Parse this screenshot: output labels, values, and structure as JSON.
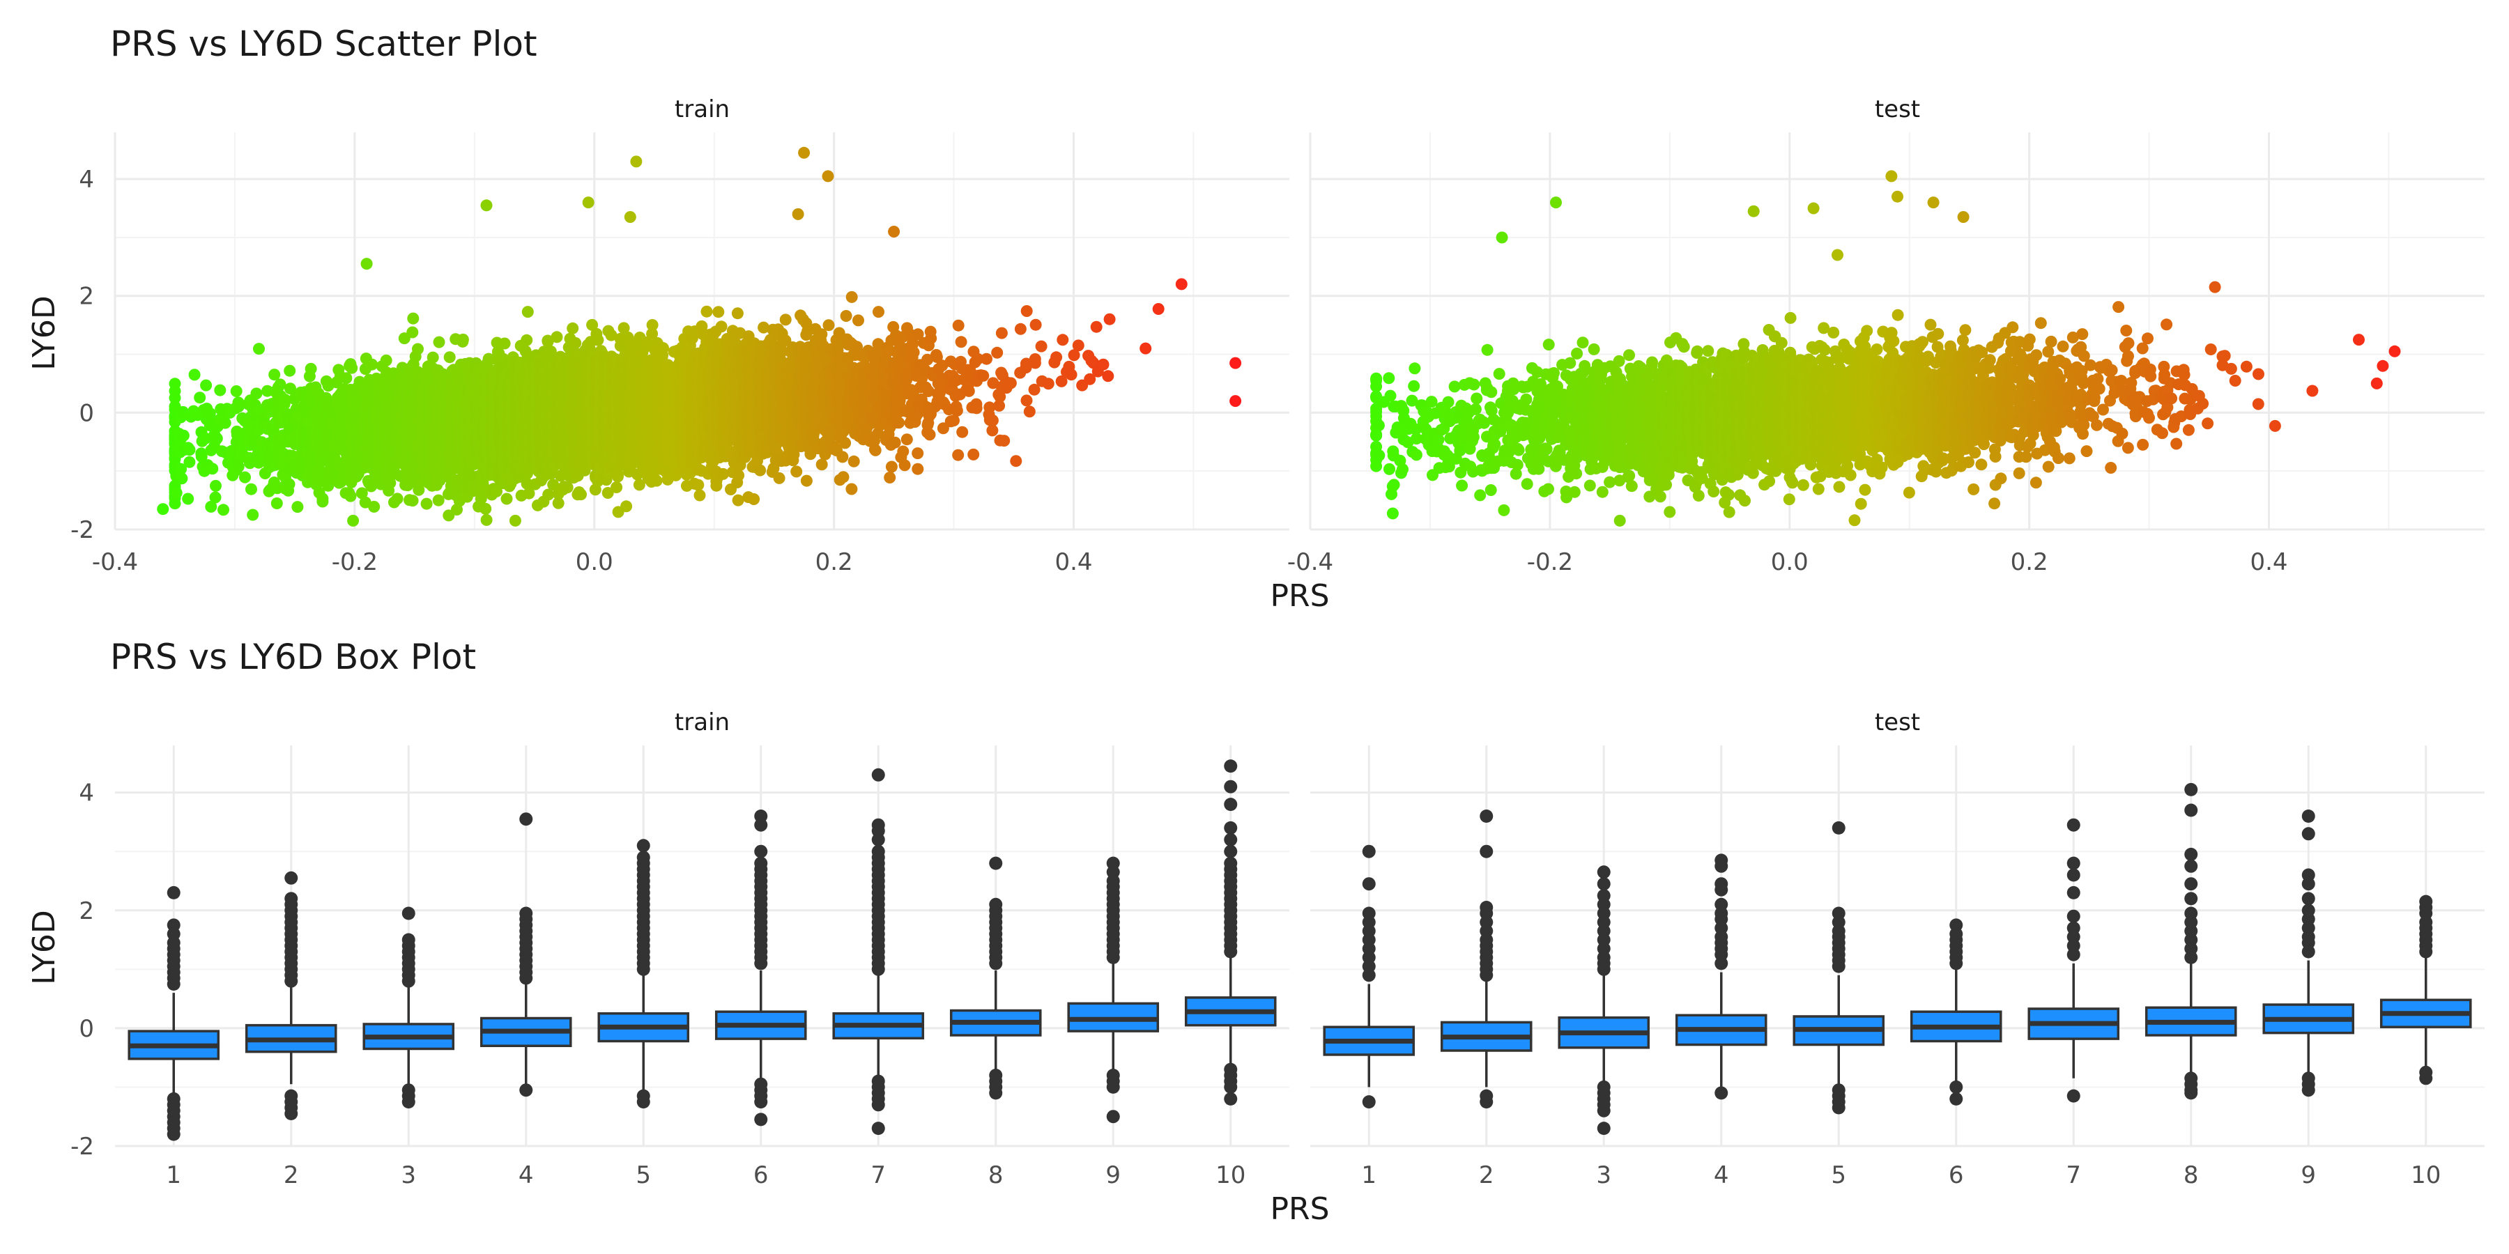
{
  "figure": {
    "scatter_title": "PRS vs LY6D Scatter Plot",
    "box_title": "PRS vs LY6D Box Plot",
    "xlabel": "PRS",
    "ylabel": "LY6D"
  },
  "colors": {
    "low": "#33ff00",
    "mid": "#b8b800",
    "high": "#ff1a1a",
    "box_fill": "#1e8fff",
    "box_stroke": "#333333",
    "grid_major": "#ebebeb",
    "grid_minor": "#f3f3f3",
    "text": "#4d4d4d"
  },
  "chart_data": [
    {
      "type": "scatter",
      "panel_title": "PRS vs LY6D Scatter Plot",
      "facets": [
        "train",
        "test"
      ],
      "xlabel": "PRS",
      "ylabel": "LY6D",
      "x_ticks": [
        "-0.4",
        "-0.2",
        "0.0",
        "0.2",
        "0.4"
      ],
      "y_ticks": [
        "-2",
        "0",
        "2",
        "4"
      ],
      "xlim": [
        -0.4,
        0.58
      ],
      "ylim": [
        -2,
        4.8
      ],
      "color_scale": [
        "#33ff00",
        "#b8b800",
        "#ff1a1a"
      ],
      "grid": true,
      "series": [
        {
          "facet": "train",
          "trend": {
            "slope": 1.55,
            "intercept": 0.0
          },
          "x_range": [
            -0.36,
            0.54
          ],
          "n_points": 9000,
          "outliers": [
            {
              "x": 0.175,
              "y": 4.45
            },
            {
              "x": 0.195,
              "y": 4.05
            },
            {
              "x": 0.035,
              "y": 4.3
            },
            {
              "x": -0.005,
              "y": 3.6
            },
            {
              "x": -0.09,
              "y": 3.55
            },
            {
              "x": 0.17,
              "y": 3.4
            },
            {
              "x": 0.25,
              "y": 3.1
            },
            {
              "x": 0.03,
              "y": 3.35
            },
            {
              "x": 0.49,
              "y": 2.2
            },
            {
              "x": 0.535,
              "y": 0.85
            },
            {
              "x": 0.535,
              "y": 0.2
            },
            {
              "x": -0.36,
              "y": -1.65
            },
            {
              "x": -0.285,
              "y": -1.75
            },
            {
              "x": -0.03,
              "y": -1.55
            },
            {
              "x": -0.13,
              "y": -1.5
            },
            {
              "x": -0.19,
              "y": 2.55
            },
            {
              "x": 0.02,
              "y": -1.7
            },
            {
              "x": 0.12,
              "y": -1.5
            },
            {
              "x": 0.205,
              "y": -1.15
            },
            {
              "x": 0.46,
              "y": 1.1
            },
            {
              "x": 0.43,
              "y": 1.6
            }
          ]
        },
        {
          "facet": "test",
          "trend": {
            "slope": 1.2,
            "intercept": 0.0
          },
          "x_range": [
            -0.355,
            0.505
          ],
          "n_points": 4500,
          "outliers": [
            {
              "x": 0.085,
              "y": 4.05
            },
            {
              "x": 0.09,
              "y": 3.7
            },
            {
              "x": -0.195,
              "y": 3.6
            },
            {
              "x": 0.12,
              "y": 3.6
            },
            {
              "x": 0.145,
              "y": 3.35
            },
            {
              "x": 0.02,
              "y": 3.5
            },
            {
              "x": 0.355,
              "y": 2.15
            },
            {
              "x": -0.24,
              "y": 3.0
            },
            {
              "x": -0.03,
              "y": 3.45
            },
            {
              "x": 0.505,
              "y": 1.05
            },
            {
              "x": 0.495,
              "y": 0.8
            },
            {
              "x": 0.49,
              "y": 0.5
            },
            {
              "x": 0.475,
              "y": 1.25
            },
            {
              "x": -0.1,
              "y": -1.7
            },
            {
              "x": -0.345,
              "y": -0.7
            },
            {
              "x": -0.345,
              "y": 0.45
            },
            {
              "x": 0.04,
              "y": 2.7
            }
          ]
        }
      ]
    },
    {
      "type": "box",
      "panel_title": "PRS vs LY6D Box Plot",
      "facets": [
        "train",
        "test"
      ],
      "xlabel": "PRS",
      "ylabel": "LY6D",
      "categories": [
        "1",
        "2",
        "3",
        "4",
        "5",
        "6",
        "7",
        "8",
        "9",
        "10"
      ],
      "y_ticks": [
        "-2",
        "0",
        "2",
        "4"
      ],
      "ylim": [
        -2,
        4.8
      ],
      "grid": true,
      "series": [
        {
          "facet": "train",
          "boxes": [
            {
              "q1": -0.52,
              "median": -0.3,
              "q3": -0.05,
              "wmin": -1.15,
              "wmax": 0.6,
              "outliers": [
                2.3,
                1.75,
                1.6,
                1.45,
                1.35,
                1.25,
                1.15,
                1.05,
                0.95,
                0.85,
                0.75,
                -1.2,
                -1.3,
                -1.4,
                -1.5,
                -1.6,
                -1.7,
                -1.8
              ]
            },
            {
              "q1": -0.4,
              "median": -0.2,
              "q3": 0.05,
              "wmin": -0.95,
              "wmax": 0.72,
              "outliers": [
                2.55,
                2.2,
                2.1,
                2.0,
                1.9,
                1.8,
                1.7,
                1.6,
                1.5,
                1.4,
                1.3,
                1.2,
                1.1,
                1.0,
                0.9,
                0.8,
                -1.15,
                -1.25,
                -1.35,
                -1.45
              ]
            },
            {
              "q1": -0.35,
              "median": -0.15,
              "q3": 0.07,
              "wmin": -0.95,
              "wmax": 0.7,
              "outliers": [
                1.95,
                1.5,
                1.4,
                1.3,
                1.2,
                1.1,
                1.0,
                0.9,
                0.8,
                -1.05,
                -1.15,
                -1.25
              ]
            },
            {
              "q1": -0.3,
              "median": -0.05,
              "q3": 0.17,
              "wmin": -1.0,
              "wmax": 0.8,
              "outliers": [
                3.55,
                1.95,
                1.85,
                1.75,
                1.65,
                1.55,
                1.45,
                1.35,
                1.25,
                1.15,
                1.05,
                0.95,
                0.85,
                -1.05
              ]
            },
            {
              "q1": -0.22,
              "median": 0.02,
              "q3": 0.25,
              "wmin": -1.1,
              "wmax": 0.92,
              "outliers": [
                3.1,
                2.9,
                2.8,
                2.7,
                2.6,
                2.5,
                2.4,
                2.3,
                2.2,
                2.1,
                2.0,
                1.9,
                1.8,
                1.7,
                1.6,
                1.5,
                1.4,
                1.3,
                1.2,
                1.1,
                1.0,
                -1.15,
                -1.25
              ]
            },
            {
              "q1": -0.18,
              "median": 0.05,
              "q3": 0.28,
              "wmin": -0.9,
              "wmax": 0.98,
              "outliers": [
                3.6,
                3.45,
                3.0,
                2.8,
                2.7,
                2.6,
                2.5,
                2.4,
                2.3,
                2.2,
                2.1,
                2.0,
                1.9,
                1.8,
                1.7,
                1.6,
                1.5,
                1.4,
                1.3,
                1.2,
                1.1,
                -0.95,
                -1.05,
                -1.15,
                -1.25,
                -1.55
              ]
            },
            {
              "q1": -0.17,
              "median": 0.05,
              "q3": 0.25,
              "wmin": -0.85,
              "wmax": 0.9,
              "outliers": [
                4.3,
                3.45,
                3.35,
                3.2,
                3.0,
                2.9,
                2.8,
                2.7,
                2.6,
                2.5,
                2.4,
                2.3,
                2.2,
                2.1,
                2.0,
                1.9,
                1.8,
                1.7,
                1.6,
                1.5,
                1.4,
                1.3,
                1.2,
                1.1,
                1.0,
                -0.9,
                -1.0,
                -1.1,
                -1.2,
                -1.3,
                -1.7
              ]
            },
            {
              "q1": -0.12,
              "median": 0.1,
              "q3": 0.3,
              "wmin": -0.75,
              "wmax": 0.98,
              "outliers": [
                2.8,
                2.1,
                2.0,
                1.9,
                1.8,
                1.7,
                1.6,
                1.5,
                1.4,
                1.3,
                1.2,
                1.1,
                -0.8,
                -0.9,
                -1.0,
                -1.1
              ]
            },
            {
              "q1": -0.05,
              "median": 0.15,
              "q3": 0.42,
              "wmin": -0.7,
              "wmax": 1.1,
              "outliers": [
                2.8,
                2.65,
                2.5,
                2.4,
                2.3,
                2.2,
                2.1,
                2.0,
                1.9,
                1.8,
                1.7,
                1.6,
                1.5,
                1.4,
                1.3,
                1.2,
                -0.8,
                -0.9,
                -1.0,
                -1.5
              ]
            },
            {
              "q1": 0.05,
              "median": 0.28,
              "q3": 0.52,
              "wmin": -0.65,
              "wmax": 1.2,
              "outliers": [
                4.45,
                4.1,
                3.8,
                3.4,
                3.2,
                3.0,
                2.8,
                2.7,
                2.6,
                2.5,
                2.4,
                2.3,
                2.2,
                2.1,
                2.0,
                1.9,
                1.8,
                1.7,
                1.6,
                1.5,
                1.4,
                1.3,
                -0.7,
                -0.8,
                -0.9,
                -1.0,
                -1.2
              ]
            }
          ]
        },
        {
          "facet": "test",
          "boxes": [
            {
              "q1": -0.45,
              "median": -0.22,
              "q3": 0.02,
              "wmin": -1.0,
              "wmax": 0.75,
              "outliers": [
                3.0,
                2.45,
                1.95,
                1.8,
                1.65,
                1.5,
                1.35,
                1.2,
                1.05,
                0.9,
                -1.25
              ]
            },
            {
              "q1": -0.38,
              "median": -0.15,
              "q3": 0.1,
              "wmin": -1.0,
              "wmax": 0.8,
              "outliers": [
                3.6,
                3.0,
                2.05,
                1.95,
                1.8,
                1.65,
                1.5,
                1.4,
                1.3,
                1.2,
                1.1,
                1.0,
                0.9,
                -1.15,
                -1.25
              ]
            },
            {
              "q1": -0.33,
              "median": -0.08,
              "q3": 0.18,
              "wmin": -0.95,
              "wmax": 0.9,
              "outliers": [
                2.65,
                2.45,
                2.25,
                2.1,
                1.95,
                1.8,
                1.65,
                1.5,
                1.35,
                1.2,
                1.1,
                1.0,
                -1.0,
                -1.1,
                -1.2,
                -1.3,
                -1.4,
                -1.7
              ]
            },
            {
              "q1": -0.28,
              "median": -0.02,
              "q3": 0.22,
              "wmin": -1.0,
              "wmax": 0.95,
              "outliers": [
                2.85,
                2.75,
                2.45,
                2.35,
                2.1,
                1.95,
                1.85,
                1.7,
                1.55,
                1.45,
                1.35,
                1.25,
                1.1,
                -1.1
              ]
            },
            {
              "q1": -0.28,
              "median": -0.02,
              "q3": 0.2,
              "wmin": -1.0,
              "wmax": 0.9,
              "outliers": [
                3.4,
                1.95,
                1.8,
                1.65,
                1.55,
                1.45,
                1.35,
                1.25,
                1.15,
                1.05,
                -1.05,
                -1.15,
                -1.25,
                -1.35
              ]
            },
            {
              "q1": -0.22,
              "median": 0.02,
              "q3": 0.28,
              "wmin": -0.9,
              "wmax": 1.0,
              "outliers": [
                1.75,
                1.6,
                1.5,
                1.4,
                1.3,
                1.2,
                1.1,
                -1.0,
                -1.2
              ]
            },
            {
              "q1": -0.18,
              "median": 0.08,
              "q3": 0.33,
              "wmin": -0.85,
              "wmax": 1.1,
              "outliers": [
                3.45,
                2.8,
                2.6,
                2.3,
                1.9,
                1.7,
                1.55,
                1.4,
                1.25,
                -1.15
              ]
            },
            {
              "q1": -0.12,
              "median": 0.1,
              "q3": 0.35,
              "wmin": -0.8,
              "wmax": 1.1,
              "outliers": [
                4.05,
                3.7,
                2.95,
                2.75,
                2.45,
                2.2,
                1.95,
                1.8,
                1.65,
                1.5,
                1.35,
                1.2,
                -0.85,
                -0.95,
                -1.05,
                -1.1
              ]
            },
            {
              "q1": -0.08,
              "median": 0.15,
              "q3": 0.4,
              "wmin": -0.75,
              "wmax": 1.15,
              "outliers": [
                3.6,
                3.3,
                2.6,
                2.45,
                2.2,
                2.0,
                1.85,
                1.7,
                1.55,
                1.45,
                1.3,
                -0.85,
                -0.95,
                -1.05
              ]
            },
            {
              "q1": 0.02,
              "median": 0.25,
              "q3": 0.48,
              "wmin": -0.65,
              "wmax": 1.2,
              "outliers": [
                2.15,
                2.05,
                1.95,
                1.8,
                1.7,
                1.6,
                1.5,
                1.4,
                1.3,
                -0.75,
                -0.85
              ]
            }
          ]
        }
      ]
    }
  ]
}
